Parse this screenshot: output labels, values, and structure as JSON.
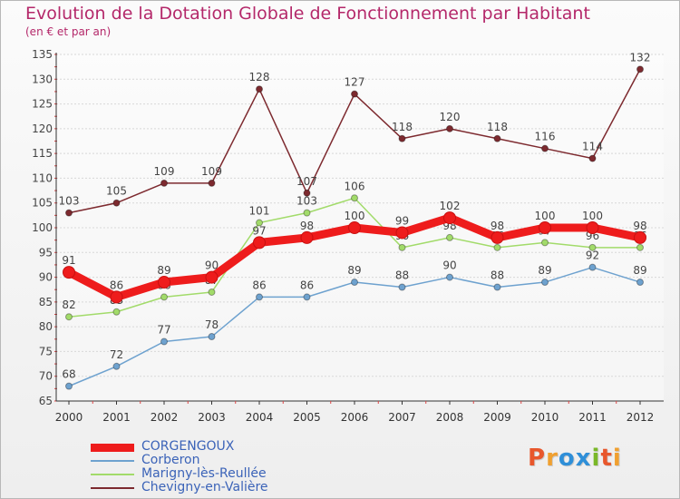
{
  "title": "Evolution de la Dotation Globale de Fonctionnement par Habitant",
  "subtitle": "(en € et par an)",
  "logo": {
    "text": "Proxiti",
    "colors": [
      "#e8572c",
      "#f0a030",
      "#2f8fd8",
      "#2f8fd8",
      "#7ab828",
      "#e8572c",
      "#f0a030"
    ]
  },
  "chart_data": {
    "type": "line",
    "title": "Evolution de la Dotation Globale de Fonctionnement par Habitant",
    "ylabel": "(en € et par an)",
    "xlabel": "",
    "categories": [
      "2000",
      "2001",
      "2002",
      "2003",
      "2004",
      "2005",
      "2006",
      "2007",
      "2008",
      "2009",
      "2010",
      "2011",
      "2012"
    ],
    "ylim": [
      65,
      135
    ],
    "yticks": [
      65,
      70,
      75,
      80,
      85,
      90,
      95,
      100,
      105,
      110,
      115,
      120,
      125,
      130,
      135
    ],
    "grid": "horizontal",
    "series": [
      {
        "name": "Corberon",
        "color": "#6ea2cf",
        "values": [
          68,
          72,
          77,
          78,
          86,
          86,
          89,
          88,
          90,
          88,
          89,
          92,
          89
        ]
      },
      {
        "name": "Marigny-lès-Reullée",
        "color": "#a2db6a",
        "values": [
          82,
          83,
          86,
          87,
          101,
          103,
          106,
          96,
          98,
          96,
          97,
          96,
          96
        ]
      },
      {
        "name": "Chevigny-en-Valière",
        "color": "#7d2a2f",
        "values": [
          103,
          105,
          109,
          109,
          128,
          107,
          127,
          118,
          120,
          118,
          116,
          114,
          132
        ]
      },
      {
        "name": "CORGENGOUX",
        "color": "#ee1c1c",
        "values": [
          91,
          86,
          89,
          90,
          97,
          98,
          100,
          99,
          102,
          98,
          100,
          100,
          98
        ]
      }
    ]
  },
  "legend": [
    {
      "name": "CORGENGOUX",
      "color": "#ee1c1c",
      "thick": true
    },
    {
      "name": "Corberon",
      "color": "#6ea2cf",
      "thick": false
    },
    {
      "name": "Marigny-lès-Reullée",
      "color": "#a2db6a",
      "thick": false
    },
    {
      "name": "Chevigny-en-Valière",
      "color": "#7d2a2f",
      "thick": false
    }
  ]
}
